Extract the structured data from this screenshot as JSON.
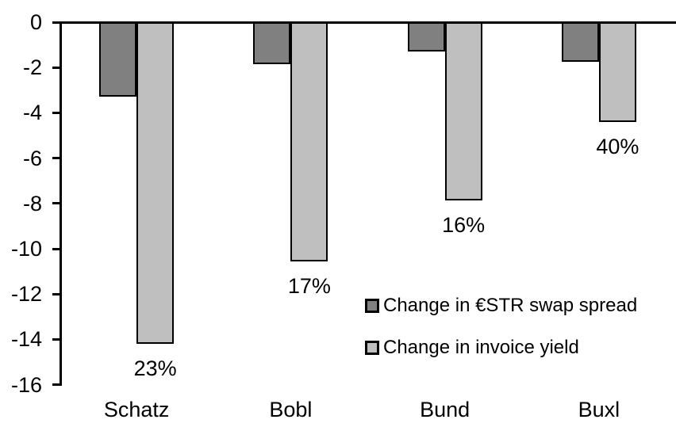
{
  "chart_data": {
    "type": "bar",
    "title": "",
    "categories": [
      "Schatz",
      "Bobl",
      "Bund",
      "Buxl"
    ],
    "series": [
      {
        "name": "Change in €STR swap spread",
        "color": "#808080",
        "values": [
          -3.3,
          -1.85,
          -1.3,
          -1.75
        ]
      },
      {
        "name": "Change in invoice yield",
        "color": "#BFBFBF",
        "values": [
          -14.2,
          -10.55,
          -7.85,
          -4.4
        ],
        "data_labels": [
          "23%",
          "17%",
          "16%",
          "40%"
        ]
      }
    ],
    "ylim": [
      -16,
      0
    ],
    "y_ticks": [
      0,
      -2,
      -4,
      -6,
      -8,
      -10,
      -12,
      -14,
      -16
    ],
    "grid": false,
    "legend_position": "inside-right-middle",
    "axis_color": "#000000",
    "bar_border_color": "#000000",
    "background": "#FFFFFF",
    "text_color": "#000000"
  }
}
